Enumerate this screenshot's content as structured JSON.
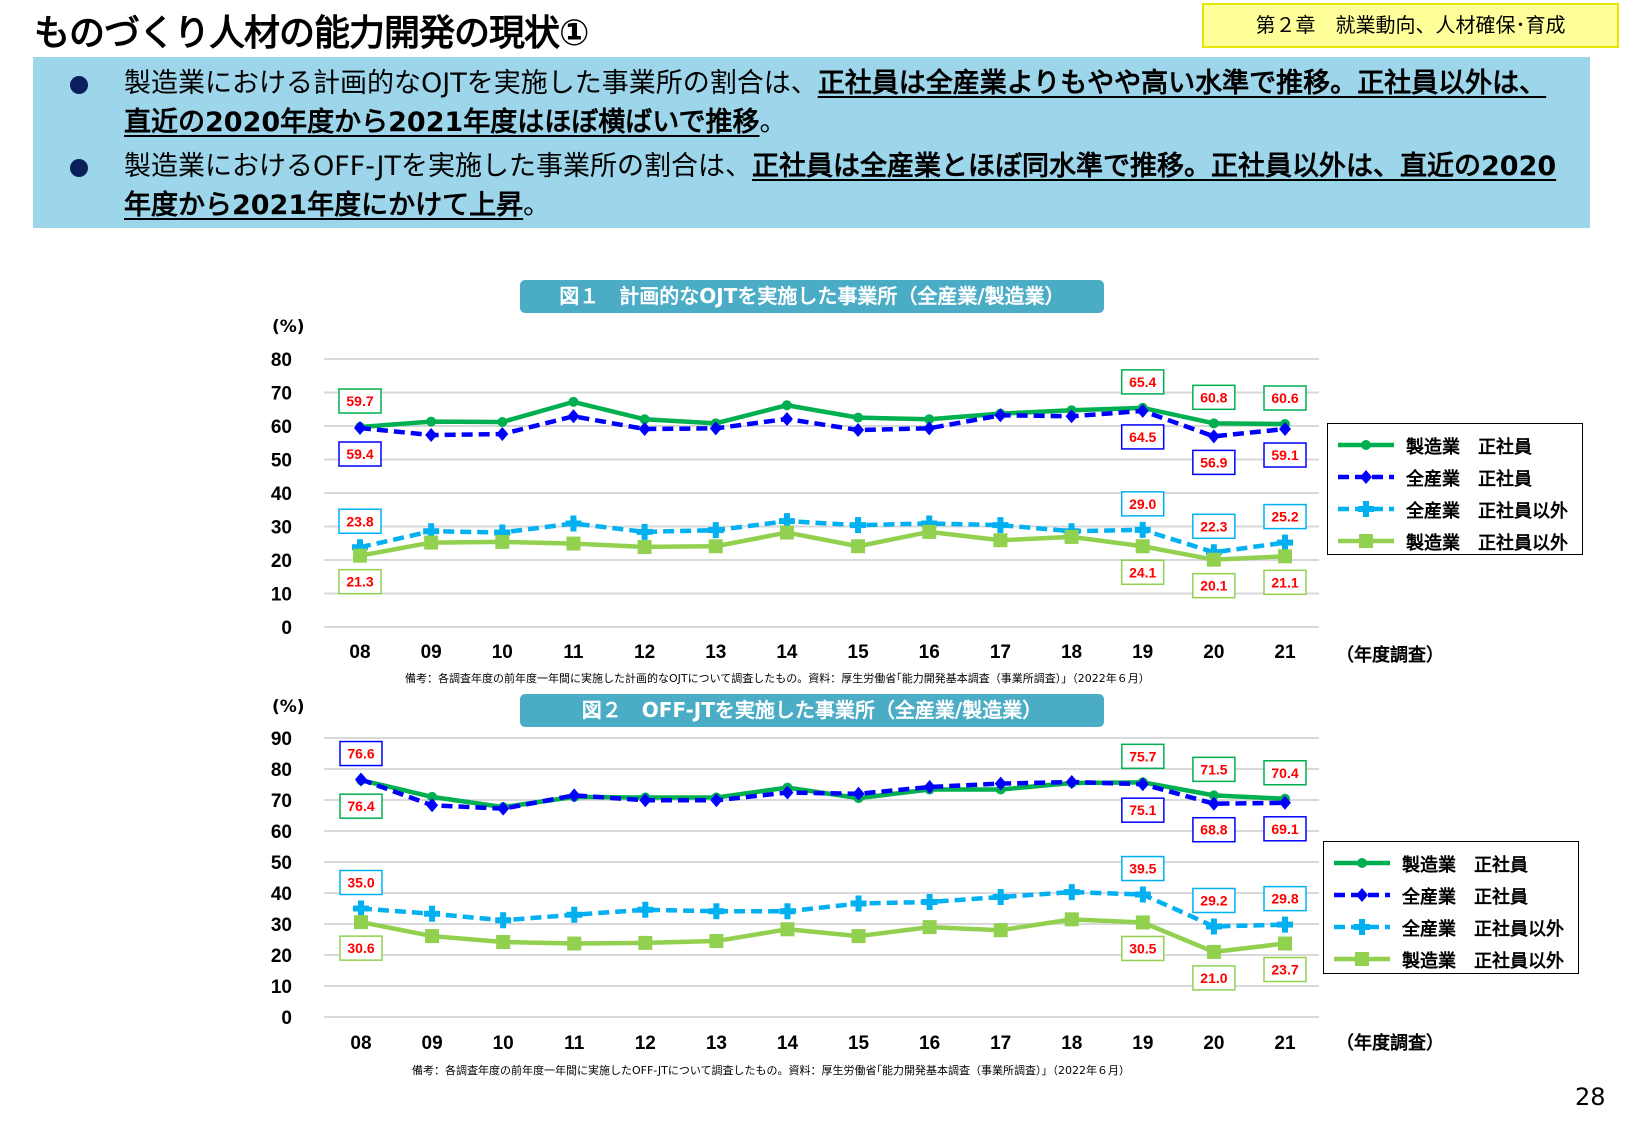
{
  "header": {
    "title": "ものづくり人材の能力開発の現状①",
    "chapter": "第２章　就業動向、人材確保･育成"
  },
  "summary": {
    "bullets": [
      {
        "segments": [
          {
            "text": "製造業における計画的なOJTを実施した事業所の割合は、",
            "emph": false
          },
          {
            "text": "正社員は全産業よりもやや高い水準で推移。",
            "emph": true
          },
          {
            "text": "正社員以外は、直近の2020年度から2021年度はほぼ横ばいで推移",
            "emph": true
          },
          {
            "text": "。",
            "emph": false
          }
        ]
      },
      {
        "segments": [
          {
            "text": "製造業におけるOFF-JTを実施した事業所の割合は、",
            "emph": false
          },
          {
            "text": "正社員は全産業とほぼ同水準で推移。",
            "emph": true
          },
          {
            "text": "正社員以外は、直近の2020年度から2021年度にかけて上昇",
            "emph": true
          },
          {
            "text": "。",
            "emph": false
          }
        ]
      }
    ]
  },
  "colors": {
    "mfg_regular": "#00b050",
    "all_regular": "#0000ff",
    "all_nonregular": "#00b0f0",
    "mfg_nonregular": "#92d050",
    "label_text": "#ff0000",
    "title_pill": "#4bacc6",
    "summary_bg": "#9dd5ea"
  },
  "chart_data": [
    {
      "type": "line",
      "title": "図１　計画的なOJTを実施した事業所（全産業/製造業）",
      "ylabel": "(%)",
      "xlabel": "（年度調査）",
      "ylim": [
        0,
        80
      ],
      "yticks": [
        0,
        10,
        20,
        30,
        40,
        50,
        60,
        70,
        80
      ],
      "grid": true,
      "legend_position": "right",
      "categories": [
        "08",
        "09",
        "10",
        "11",
        "12",
        "13",
        "14",
        "15",
        "16",
        "17",
        "18",
        "19",
        "20",
        "21"
      ],
      "series": [
        {
          "name": "製造業　正社員",
          "key": "mfg_regular",
          "style": "solid",
          "marker": "circle",
          "values": [
            59.7,
            61.3,
            61.2,
            67.2,
            62.0,
            60.8,
            66.2,
            62.5,
            62.0,
            63.7,
            64.7,
            65.4,
            60.8,
            60.6
          ],
          "labels": {
            "0": "59.7",
            "11": "65.4",
            "12": "60.8",
            "13": "60.6"
          }
        },
        {
          "name": "全産業　正社員",
          "key": "all_regular",
          "style": "dashed",
          "marker": "diamond",
          "values": [
            59.4,
            57.3,
            57.6,
            62.9,
            59.1,
            59.3,
            62.1,
            58.8,
            59.3,
            63.2,
            62.9,
            64.5,
            56.9,
            59.1
          ],
          "labels": {
            "0": "59.4",
            "11": "64.5",
            "12": "56.9",
            "13": "59.1"
          }
        },
        {
          "name": "全産業　正社員以外",
          "key": "all_nonregular",
          "style": "dashed",
          "marker": "cross",
          "values": [
            23.8,
            28.6,
            28.2,
            30.9,
            28.4,
            28.9,
            31.6,
            30.4,
            30.9,
            30.4,
            28.6,
            29.0,
            22.3,
            25.2
          ],
          "labels": {
            "0": "23.8",
            "11": "29.0",
            "12": "22.3",
            "13": "25.2"
          }
        },
        {
          "name": "製造業　正社員以外",
          "key": "mfg_nonregular",
          "style": "solid",
          "marker": "square",
          "values": [
            21.3,
            25.2,
            25.4,
            24.9,
            23.9,
            24.1,
            28.2,
            24.1,
            28.4,
            25.9,
            26.9,
            24.1,
            20.1,
            21.1
          ],
          "labels": {
            "0": "21.3",
            "11": "24.1",
            "12": "20.1",
            "13": "21.1"
          }
        }
      ],
      "note": "備考：各調査年度の前年度一年間に実施した計画的なOJTについて調査したもの。資料：厚生労働省｢能力開発基本調査（事業所調査）」（2022年６月）"
    },
    {
      "type": "line",
      "title": "図２　OFF-JTを実施した事業所（全産業/製造業）",
      "ylabel": "(%)",
      "xlabel": "（年度調査）",
      "ylim": [
        0,
        90
      ],
      "yticks": [
        0,
        10,
        20,
        30,
        40,
        50,
        60,
        70,
        80,
        90
      ],
      "grid": true,
      "legend_position": "right",
      "categories": [
        "08",
        "09",
        "10",
        "11",
        "12",
        "13",
        "14",
        "15",
        "16",
        "17",
        "18",
        "19",
        "20",
        "21"
      ],
      "series": [
        {
          "name": "製造業　正社員",
          "key": "mfg_regular",
          "style": "solid",
          "marker": "circle",
          "values": [
            76.4,
            71.0,
            67.7,
            71.0,
            70.8,
            70.8,
            74.0,
            70.6,
            73.4,
            73.4,
            75.5,
            75.7,
            71.5,
            70.4
          ],
          "labels": {
            "0": "76.4",
            "11": "75.7",
            "12": "71.5",
            "13": "70.4"
          }
        },
        {
          "name": "全産業　正社員",
          "key": "all_regular",
          "style": "dashed",
          "marker": "diamond",
          "values": [
            76.6,
            68.3,
            67.2,
            71.5,
            69.9,
            69.9,
            72.4,
            72.0,
            74.2,
            75.3,
            75.8,
            75.1,
            68.8,
            69.1
          ],
          "labels": {
            "0": "76.6",
            "11": "75.1",
            "12": "68.8",
            "13": "69.1"
          }
        },
        {
          "name": "全産業　正社員以外",
          "key": "all_nonregular",
          "style": "dashed",
          "marker": "cross",
          "values": [
            35.0,
            33.3,
            31.2,
            33.0,
            34.6,
            34.1,
            34.1,
            36.6,
            37.1,
            38.7,
            40.3,
            39.5,
            29.2,
            29.8
          ],
          "labels": {
            "0": "35.0",
            "11": "39.5",
            "12": "29.2",
            "13": "29.8"
          }
        },
        {
          "name": "製造業　正社員以外",
          "key": "mfg_nonregular",
          "style": "solid",
          "marker": "square",
          "values": [
            30.6,
            26.1,
            24.2,
            23.7,
            23.9,
            24.5,
            28.3,
            26.1,
            29.0,
            28.0,
            31.5,
            30.5,
            21.0,
            23.7
          ],
          "labels": {
            "0": "30.6",
            "11": "30.5",
            "12": "21.0",
            "13": "23.7"
          }
        }
      ],
      "note": "備考：各調査年度の前年度一年間に実施したOFF-JTについて調査したもの。資料：厚生労働省｢能力開発基本調査（事業所調査）」（2022年６月）"
    }
  ],
  "page_number": "28"
}
